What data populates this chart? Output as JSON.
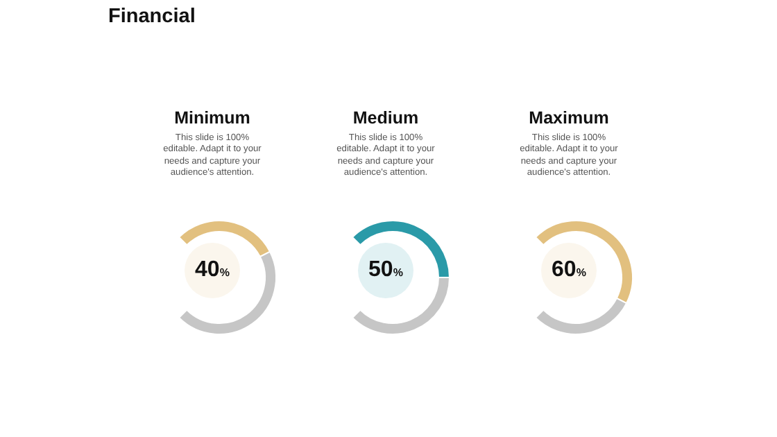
{
  "chart_data": [
    {
      "type": "donut",
      "title": "Minimum",
      "subtitle": "This slide is 100% editable. Adapt it to your needs and capture your audience's attention.",
      "annotations": [
        "Financial"
      ],
      "categories": [
        null,
        null
      ],
      "values": [
        40,
        60
      ],
      "colors": [
        "#e2c07f",
        "#c6c6c6"
      ],
      "value_labels": [
        "40%",
        null
      ]
    },
    {
      "type": "donut",
      "title": "Medium",
      "subtitle": "This slide is 100% editable. Adapt it to your needs and capture your audience's attention.",
      "categories": [
        null,
        null
      ],
      "values": [
        50,
        50
      ],
      "colors": [
        "#2a9aa8",
        "#c6c6c6"
      ],
      "value_labels": [
        "50%",
        null
      ]
    },
    {
      "type": "donut",
      "title": "Maximum",
      "subtitle": "This slide is 100% editable. Adapt it to your needs and capture your audience's attention.",
      "categories": [
        null,
        null
      ],
      "values": [
        60,
        40
      ],
      "colors": [
        "#e2c07f",
        "#c6c6c6"
      ],
      "value_labels": [
        "60%",
        null
      ]
    }
  ]
}
